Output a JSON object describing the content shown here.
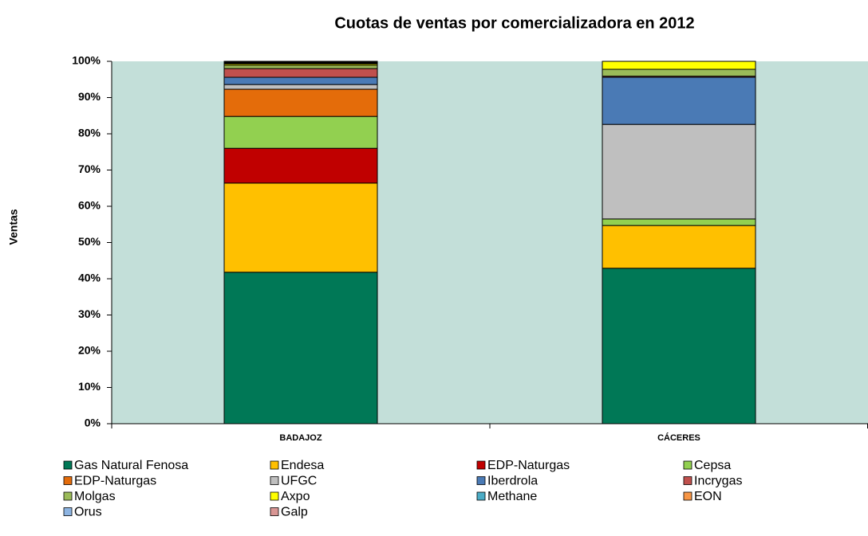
{
  "chart_data": {
    "type": "stacked_bar",
    "title": "Cuotas de ventas por comercializadora en 2012",
    "y_label": "Ventas",
    "categories": [
      "BADAJOZ",
      "CÁCERES"
    ],
    "ylim": [
      0,
      100
    ],
    "yticks": [
      {
        "value": 0,
        "label": "0%"
      },
      {
        "value": 10,
        "label": "10%"
      },
      {
        "value": 20,
        "label": "20%"
      },
      {
        "value": 30,
        "label": "30%"
      },
      {
        "value": 40,
        "label": "40%"
      },
      {
        "value": 50,
        "label": "50%"
      },
      {
        "value": 60,
        "label": "60%"
      },
      {
        "value": 70,
        "label": "70%"
      },
      {
        "value": 80,
        "label": "80%"
      },
      {
        "value": 90,
        "label": "90%"
      },
      {
        "value": 100,
        "label": "100%"
      }
    ],
    "series": [
      {
        "name": "Gas Natural Fenosa",
        "color": "#007856",
        "values": [
          41.8,
          42.9
        ]
      },
      {
        "name": "Endesa",
        "color": "#FFC000",
        "values": [
          24.6,
          11.8
        ]
      },
      {
        "name": "EDP-Naturgas",
        "color": "#C00000",
        "values": [
          9.6,
          0
        ]
      },
      {
        "name": "Cepsa",
        "color": "#92D050",
        "values": [
          8.8,
          1.8
        ]
      },
      {
        "name": "EDP-Naturgas",
        "color": "#E46C0A",
        "values": [
          7.5,
          0
        ]
      },
      {
        "name": "UFGC",
        "color": "#BFBFBF",
        "values": [
          1.3,
          26.1
        ]
      },
      {
        "name": "Iberdrola",
        "color": "#4A7AB5",
        "values": [
          2.0,
          13.0
        ]
      },
      {
        "name": "Incrygas",
        "color": "#C0504D",
        "values": [
          2.4,
          0.3
        ]
      },
      {
        "name": "Molgas",
        "color": "#9BBB59",
        "values": [
          0.9,
          1.9
        ]
      },
      {
        "name": "Axpo",
        "color": "#FFFF00",
        "values": [
          0.4,
          2.2
        ]
      },
      {
        "name": "Methane",
        "color": "#4BACC6",
        "values": [
          0.2,
          0
        ]
      },
      {
        "name": "EON",
        "color": "#F79646",
        "values": [
          0.2,
          0
        ]
      },
      {
        "name": "Orus",
        "color": "#8DB4E2",
        "values": [
          0.2,
          0
        ]
      },
      {
        "name": "Galp",
        "color": "#D99694",
        "values": [
          0.1,
          0
        ]
      }
    ]
  }
}
